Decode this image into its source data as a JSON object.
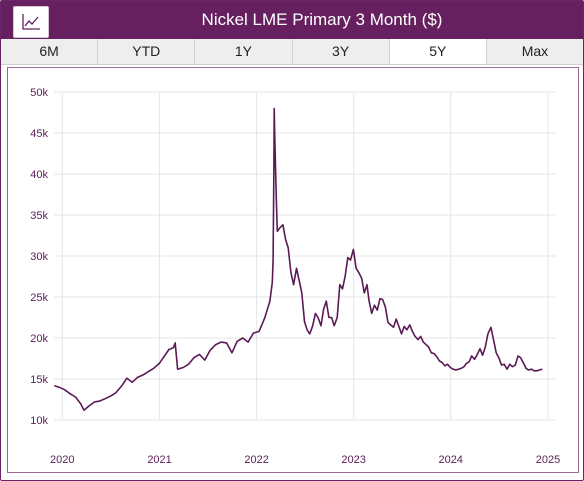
{
  "header": {
    "title": "Nickel LME Primary 3 Month ($)",
    "chart_button_icon": "line-chart-icon"
  },
  "tabs": [
    {
      "label": "6M",
      "active": false
    },
    {
      "label": "YTD",
      "active": false
    },
    {
      "label": "1Y",
      "active": false
    },
    {
      "label": "3Y",
      "active": false
    },
    {
      "label": "5Y",
      "active": true
    },
    {
      "label": "Max",
      "active": false
    }
  ],
  "colors": {
    "accent": "#66205f",
    "line": "#5a1a55",
    "grid": "#e6e6e6",
    "tick_text": "#5b1f57"
  },
  "chart_data": {
    "type": "line",
    "title": "Nickel LME Primary 3 Month ($)",
    "xlabel": "",
    "ylabel": "",
    "xlim": [
      "2019-12-01",
      "2025-01-31"
    ],
    "ylim": [
      10000,
      50000
    ],
    "x_ticks": [
      "2020",
      "2021",
      "2022",
      "2023",
      "2024",
      "2025"
    ],
    "y_ticks": [
      "10k",
      "15k",
      "20k",
      "25k",
      "30k",
      "35k",
      "40k",
      "45k",
      "50k"
    ],
    "grid": true,
    "legend": "none",
    "series": [
      {
        "name": "",
        "x": [
          "2019-12-02",
          "2019-12-20",
          "2020-01-10",
          "2020-01-31",
          "2020-02-20",
          "2020-03-10",
          "2020-03-23",
          "2020-04-10",
          "2020-05-01",
          "2020-05-20",
          "2020-06-10",
          "2020-06-30",
          "2020-07-20",
          "2020-08-10",
          "2020-08-31",
          "2020-09-20",
          "2020-10-10",
          "2020-10-31",
          "2020-11-20",
          "2020-12-10",
          "2020-12-31",
          "2021-01-15",
          "2021-02-05",
          "2021-02-22",
          "2021-03-01",
          "2021-03-10",
          "2021-03-31",
          "2021-04-20",
          "2021-05-10",
          "2021-05-31",
          "2021-06-20",
          "2021-07-10",
          "2021-07-31",
          "2021-08-20",
          "2021-09-10",
          "2021-09-30",
          "2021-10-20",
          "2021-11-10",
          "2021-11-30",
          "2021-12-20",
          "2022-01-10",
          "2022-01-31",
          "2022-02-20",
          "2022-03-01",
          "2022-03-04",
          "2022-03-07",
          "2022-03-08",
          "2022-03-10",
          "2022-03-16",
          "2022-03-20",
          "2022-03-31",
          "2022-04-10",
          "2022-04-20",
          "2022-04-30",
          "2022-05-10",
          "2022-05-20",
          "2022-05-31",
          "2022-06-10",
          "2022-06-20",
          "2022-06-30",
          "2022-07-10",
          "2022-07-20",
          "2022-07-31",
          "2022-08-10",
          "2022-08-20",
          "2022-08-31",
          "2022-09-10",
          "2022-09-20",
          "2022-09-30",
          "2022-10-10",
          "2022-10-20",
          "2022-10-31",
          "2022-11-10",
          "2022-11-20",
          "2022-11-30",
          "2022-12-10",
          "2022-12-20",
          "2022-12-31",
          "2023-01-10",
          "2023-01-20",
          "2023-01-31",
          "2023-02-10",
          "2023-02-20",
          "2023-02-28",
          "2023-03-10",
          "2023-03-20",
          "2023-03-31",
          "2023-04-10",
          "2023-04-20",
          "2023-04-30",
          "2023-05-10",
          "2023-05-20",
          "2023-05-31",
          "2023-06-10",
          "2023-06-20",
          "2023-06-30",
          "2023-07-10",
          "2023-07-20",
          "2023-07-31",
          "2023-08-10",
          "2023-08-20",
          "2023-08-31",
          "2023-09-10",
          "2023-09-20",
          "2023-09-30",
          "2023-10-10",
          "2023-10-20",
          "2023-10-31",
          "2023-11-10",
          "2023-11-20",
          "2023-11-30",
          "2023-12-10",
          "2023-12-20",
          "2023-12-31",
          "2024-01-10",
          "2024-01-20",
          "2024-01-31",
          "2024-02-10",
          "2024-02-20",
          "2024-02-29",
          "2024-03-10",
          "2024-03-20",
          "2024-03-31",
          "2024-04-10",
          "2024-04-20",
          "2024-04-30",
          "2024-05-10",
          "2024-05-20",
          "2024-05-31",
          "2024-06-10",
          "2024-06-20",
          "2024-06-30",
          "2024-07-10",
          "2024-07-20",
          "2024-07-31",
          "2024-08-10",
          "2024-08-20",
          "2024-08-31",
          "2024-09-10",
          "2024-09-20",
          "2024-09-30",
          "2024-10-10",
          "2024-10-20",
          "2024-10-31",
          "2024-11-10",
          "2024-11-20",
          "2024-11-30",
          "2024-12-10"
        ],
        "y": [
          14200,
          14000,
          13700,
          13200,
          12800,
          12000,
          11200,
          11700,
          12200,
          12300,
          12600,
          12900,
          13300,
          14100,
          15100,
          14600,
          15200,
          15500,
          15900,
          16300,
          16900,
          17600,
          18600,
          18800,
          19400,
          16200,
          16400,
          16800,
          17600,
          18000,
          17300,
          18500,
          19200,
          19500,
          19400,
          18200,
          19600,
          20000,
          19500,
          20600,
          20800,
          22400,
          24500,
          26800,
          29500,
          41000,
          48000,
          45000,
          37000,
          33000,
          33500,
          33800,
          32000,
          31000,
          28000,
          26500,
          28500,
          27000,
          25500,
          22000,
          21000,
          20500,
          21500,
          23000,
          22500,
          21500,
          23500,
          24500,
          22500,
          22500,
          21500,
          22500,
          26500,
          26000,
          27500,
          29800,
          29500,
          30800,
          28500,
          28000,
          27300,
          25500,
          26500,
          24500,
          23000,
          24000,
          23400,
          24800,
          24700,
          23800,
          21900,
          21600,
          21300,
          22300,
          21400,
          20500,
          21400,
          21000,
          21600,
          20800,
          20200,
          19800,
          20200,
          19500,
          19200,
          18900,
          18200,
          18100,
          17700,
          17200,
          17000,
          16600,
          16800,
          16400,
          16200,
          16100,
          16200,
          16300,
          16500,
          16900,
          17100,
          17800,
          17400,
          18000,
          18700,
          17900,
          18900,
          20500,
          21300,
          19800,
          18200,
          17600,
          16700,
          16800,
          16200,
          16800,
          16500,
          16700,
          17800,
          17600,
          17000,
          16300,
          16100,
          16200,
          16000,
          16000,
          16100,
          16200
        ]
      }
    ]
  }
}
